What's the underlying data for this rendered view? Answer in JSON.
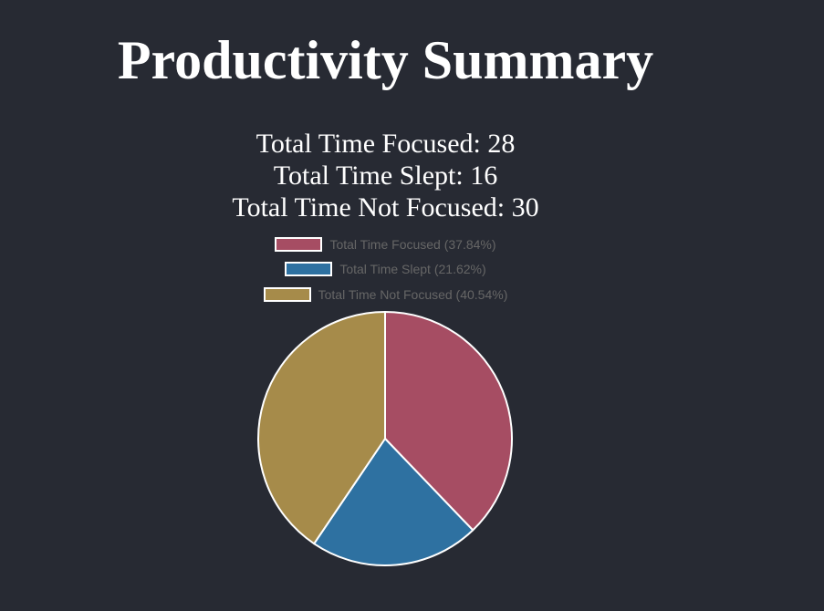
{
  "title": "Productivity Summary",
  "stats": {
    "focused": "Total Time Focused: 28",
    "slept": "Total Time Slept: 16",
    "not_focused": "Total Time Not Focused: 30"
  },
  "chart_data": {
    "type": "pie",
    "categories": [
      "Total Time Focused",
      "Total Time Slept",
      "Total Time Not Focused"
    ],
    "values": [
      28,
      16,
      30
    ],
    "legend_labels": [
      "Total Time Focused (37.84%)",
      "Total Time Slept (21.62%)",
      "Total Time Not Focused (40.54%)"
    ],
    "colors": [
      "#a64d63",
      "#2e71a1",
      "#a68b4a"
    ],
    "border_color": "#ffffff",
    "legend_position": "top"
  }
}
